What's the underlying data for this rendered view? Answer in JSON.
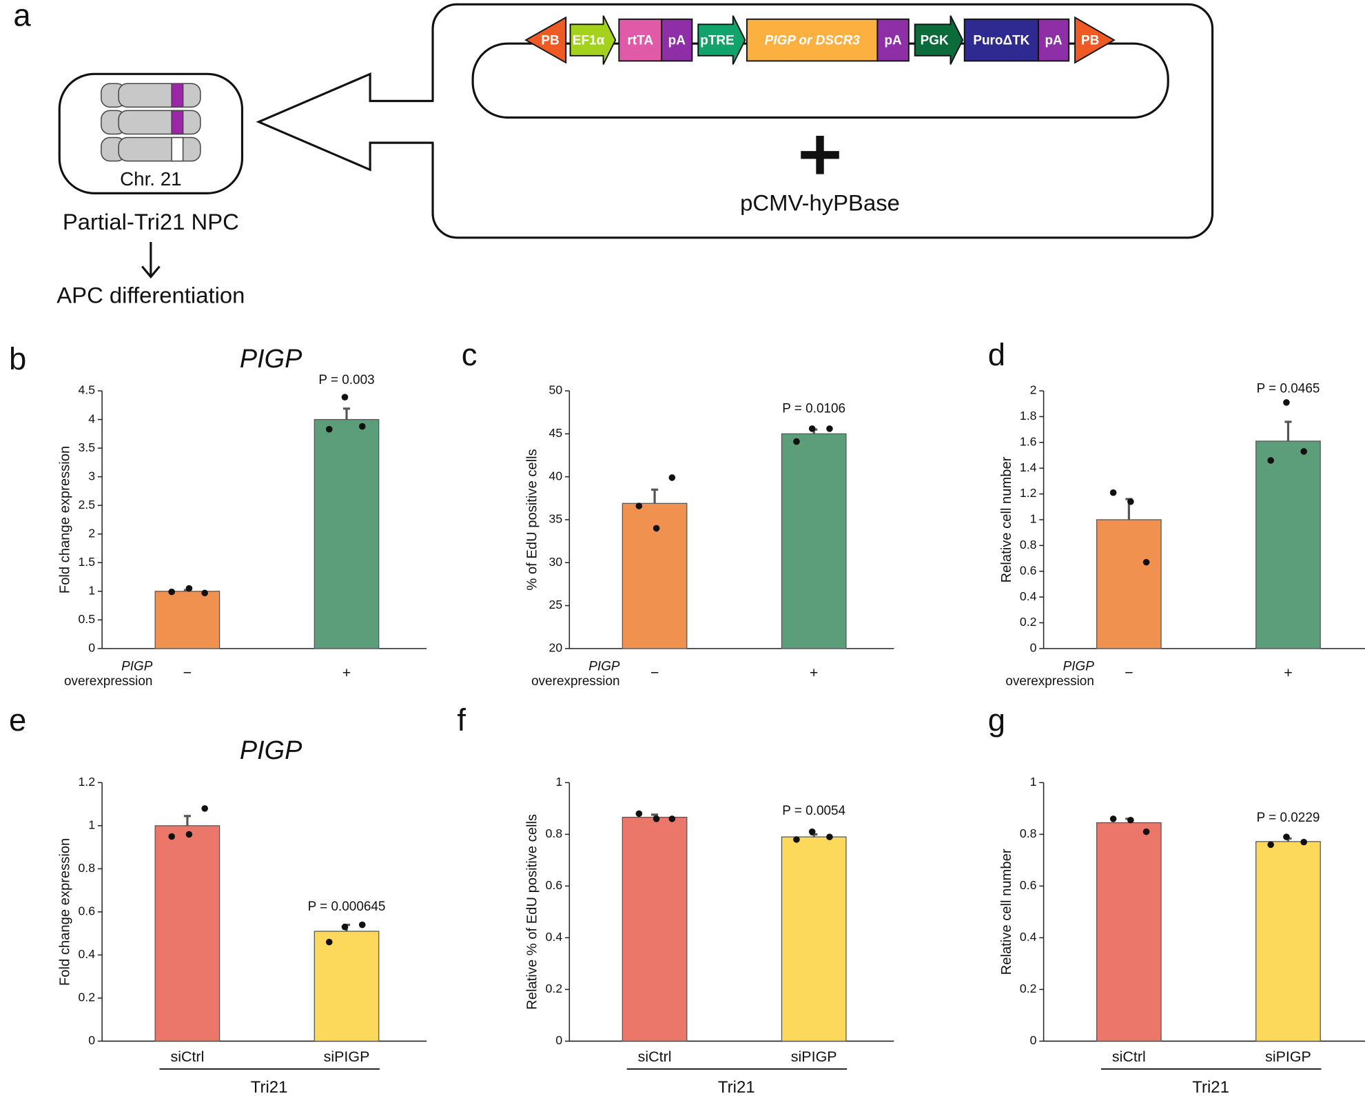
{
  "panel_labels": [
    "a",
    "b",
    "c",
    "d",
    "e",
    "f",
    "g"
  ],
  "diagram": {
    "chromosome_label": "Chr. 21",
    "cell_label": "Partial-Tri21 NPC",
    "outcome_label": "APC differentiation",
    "elements": [
      "PB",
      "EF1α",
      "rtTA",
      "pA",
      "pTRE",
      "PIGP or DSCR3",
      "pA",
      "PGK",
      "PuroΔTK",
      "pA",
      "PB"
    ],
    "plus": "+",
    "helper_plasmid": "pCMV-hyPBase"
  },
  "chart_data": [
    {
      "type": "bar",
      "title": "PIGP",
      "ylabel": "Fold change expression",
      "xlabel": [
        "PIGP",
        "overexpression"
      ],
      "categories": [
        "−",
        "+"
      ],
      "values": [
        1.0,
        4.0
      ],
      "errors": [
        0.02,
        0.19
      ],
      "points": [
        [
          0.99,
          0.97,
          1.05
        ],
        [
          3.88,
          3.83,
          4.39
        ]
      ],
      "colors": [
        "#f0914f",
        "#5c9e7a"
      ],
      "annotation": "P = 0.003",
      "ylim": [
        0,
        4.5
      ],
      "yticks": [
        0,
        0.5,
        1,
        1.5,
        2,
        2.5,
        3,
        3.5,
        4,
        4.5
      ]
    },
    {
      "type": "bar",
      "ylabel": "% of EdU positive cells",
      "xlabel": [
        "PIGP",
        "overexpression"
      ],
      "categories": [
        "−",
        "+"
      ],
      "values": [
        36.9,
        45.0
      ],
      "errors": [
        1.6,
        0.5
      ],
      "points": [
        [
          36.6,
          39.9,
          34.0
        ],
        [
          45.6,
          44.1,
          45.6
        ]
      ],
      "colors": [
        "#f0914f",
        "#5c9e7a"
      ],
      "annotation": "P = 0.0106",
      "ylim": [
        20,
        50
      ],
      "yticks": [
        20,
        25,
        30,
        35,
        40,
        45,
        50
      ]
    },
    {
      "type": "bar",
      "ylabel": "Relative cell number",
      "xlabel": [
        "PIGP",
        "overexpression"
      ],
      "categories": [
        "−",
        "+"
      ],
      "values": [
        1.0,
        1.61
      ],
      "errors": [
        0.16,
        0.15
      ],
      "points": [
        [
          1.21,
          0.67,
          1.14
        ],
        [
          1.53,
          1.46,
          1.91
        ]
      ],
      "colors": [
        "#f0914f",
        "#5c9e7a"
      ],
      "annotation": "P = 0.0465",
      "ylim": [
        0,
        2
      ],
      "yticks": [
        0,
        0.2,
        0.4,
        0.6,
        0.8,
        1,
        1.2,
        1.4,
        1.6,
        1.8,
        2
      ]
    },
    {
      "type": "bar",
      "title": "PIGP",
      "ylabel": "Fold change expression",
      "group_label": "Tri21",
      "categories": [
        "siCtrl",
        "siPIGP"
      ],
      "values": [
        1.0,
        0.51
      ],
      "errors": [
        0.045,
        0.03
      ],
      "points": [
        [
          0.95,
          1.08,
          0.96
        ],
        [
          0.54,
          0.46,
          0.53
        ]
      ],
      "colors": [
        "#eb766a",
        "#fdd95b"
      ],
      "annotation": "P = 0.000645",
      "ylim": [
        0,
        1.2
      ],
      "yticks": [
        0,
        0.2,
        0.4,
        0.6,
        0.8,
        1,
        1.2
      ]
    },
    {
      "type": "bar",
      "ylabel": "Relative % of EdU positive cells",
      "group_label": "Tri21",
      "categories": [
        "siCtrl",
        "siPIGP"
      ],
      "values": [
        0.866,
        0.79
      ],
      "errors": [
        0.01,
        0.01
      ],
      "points": [
        [
          0.88,
          0.86,
          0.86
        ],
        [
          0.79,
          0.78,
          0.81
        ]
      ],
      "colors": [
        "#eb766a",
        "#fdd95b"
      ],
      "annotation": "P = 0.0054",
      "ylim": [
        0,
        1
      ],
      "yticks": [
        0,
        0.2,
        0.4,
        0.6,
        0.8,
        1
      ]
    },
    {
      "type": "bar",
      "ylabel": "Relative cell number",
      "group_label": "Tri21",
      "categories": [
        "siCtrl",
        "siPIGP"
      ],
      "values": [
        0.845,
        0.772
      ],
      "errors": [
        0.015,
        0.012
      ],
      "points": [
        [
          0.86,
          0.81,
          0.855
        ],
        [
          0.77,
          0.76,
          0.79
        ]
      ],
      "colors": [
        "#eb766a",
        "#fdd95b"
      ],
      "annotation": "P = 0.0229",
      "ylim": [
        0,
        1
      ],
      "yticks": [
        0,
        0.2,
        0.4,
        0.6,
        0.8,
        1
      ]
    }
  ]
}
